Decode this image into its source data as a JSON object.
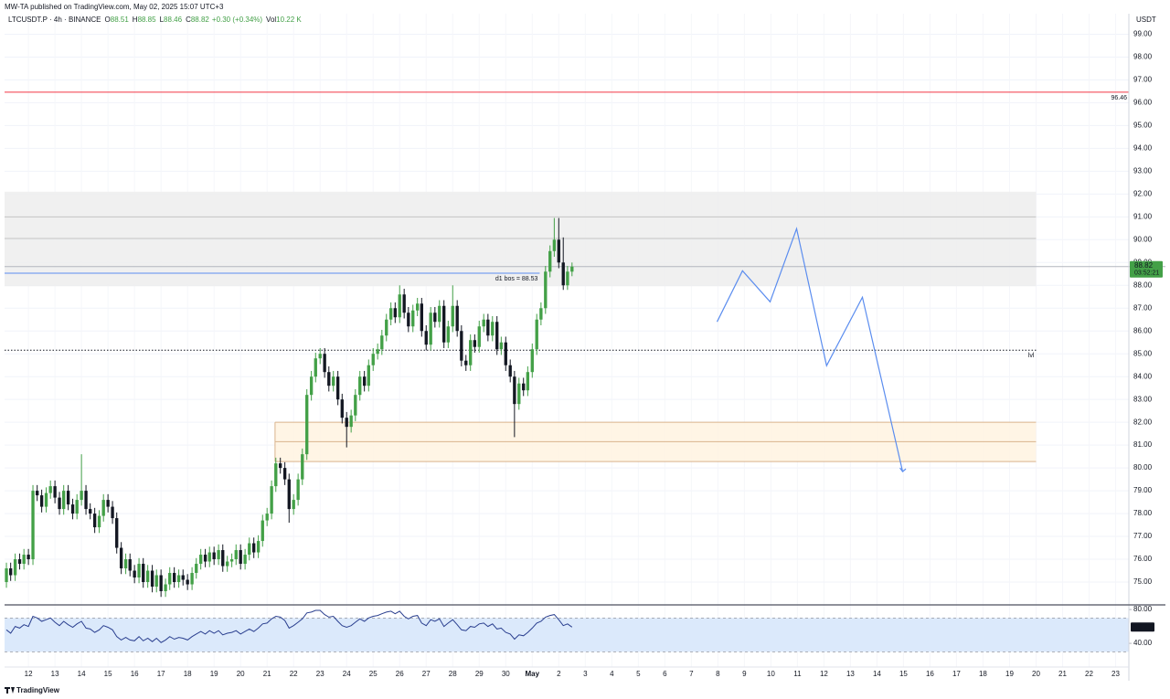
{
  "header": {
    "published": "MW-TA published on TradingView.com, May 02, 2025 15:07 UTC+3",
    "footer": "TradingView"
  },
  "chart_data": [
    {
      "type": "candlestick",
      "symbol": "LTCUSDT.P · 4h · BINANCE",
      "ohlc": [
        {
          "key": "O",
          "value": 88.51
        },
        {
          "key": "H",
          "value": 88.85
        },
        {
          "key": "L",
          "value": 88.46
        },
        {
          "key": "C",
          "value": 88.82
        }
      ],
      "change": "+0.30 (+0.34%)",
      "volume": {
        "key": "Vol",
        "value": "10.22 K"
      },
      "y_axis_title": "USDT",
      "x": [
        11.17,
        11.33,
        11.5,
        11.67,
        11.83,
        12,
        12.17,
        12.33,
        12.5,
        12.67,
        12.83,
        13,
        13.17,
        13.33,
        13.5,
        13.67,
        13.83,
        14,
        14.17,
        14.33,
        14.5,
        14.67,
        14.83,
        15,
        15.17,
        15.33,
        15.5,
        15.67,
        15.83,
        16,
        16.17,
        16.33,
        16.5,
        16.67,
        16.83,
        17,
        17.17,
        17.33,
        17.5,
        17.67,
        17.83,
        18,
        18.17,
        18.33,
        18.5,
        18.67,
        18.83,
        19,
        19.17,
        19.33,
        19.5,
        19.67,
        19.83,
        20,
        20.17,
        20.33,
        20.5,
        20.67,
        20.83,
        21,
        21.17,
        21.33,
        21.5,
        21.67,
        21.83,
        22,
        22.17,
        22.33,
        22.5,
        22.67,
        22.83,
        23,
        23.17,
        23.33,
        23.5,
        23.67,
        23.83,
        24,
        24.17,
        24.33,
        24.5,
        24.67,
        24.83,
        25,
        25.17,
        25.33,
        25.5,
        25.67,
        25.83,
        26,
        26.17,
        26.33,
        26.5,
        26.67,
        26.83,
        27,
        27.17,
        27.33,
        27.5,
        27.67,
        27.83,
        28,
        28.17,
        28.33,
        28.5,
        28.67,
        28.83,
        29,
        29.17,
        29.33,
        29.5,
        29.67,
        29.83,
        30,
        30.17,
        30.33,
        30.5,
        30.67,
        30.83,
        31,
        31.17,
        31.33,
        31.5,
        31.67,
        31.83,
        32,
        32.17,
        32.33,
        32.5
      ],
      "open": [
        75.0,
        75.6,
        75.3,
        76.0,
        75.8,
        76.2,
        76.0,
        79.0,
        78.8,
        78.3,
        78.9,
        79.2,
        78.7,
        78.2,
        79.0,
        78.4,
        78.0,
        78.6,
        79.0,
        78.2,
        78.0,
        77.4,
        77.9,
        78.6,
        78.3,
        77.8,
        76.5,
        75.6,
        76.0,
        75.5,
        75.2,
        75.8,
        75.0,
        75.5,
        74.8,
        75.3,
        74.6,
        74.9,
        75.4,
        75.0,
        75.3,
        75.1,
        74.9,
        75.4,
        75.8,
        76.2,
        75.9,
        76.3,
        76.0,
        76.4,
        75.7,
        75.9,
        76.0,
        76.4,
        75.8,
        76.2,
        76.7,
        76.3,
        76.8,
        77.7,
        78.0,
        79.2,
        80.2,
        80.0,
        79.5,
        78.2,
        78.6,
        79.5,
        80.6,
        83.2,
        84.0,
        84.8,
        85.0,
        84.2,
        83.6,
        84.0,
        83.0,
        82.2,
        81.8,
        82.3,
        83.2,
        84.0,
        83.6,
        84.5,
        85.0,
        85.2,
        85.8,
        86.5,
        87.0,
        86.6,
        87.6,
        86.8,
        86.2,
        86.9,
        87.2,
        86.0,
        85.4,
        86.8,
        86.4,
        87.1,
        85.5,
        86.2,
        87.1,
        86.0,
        84.7,
        84.5,
        85.6,
        85.3,
        86.2,
        86.5,
        85.8,
        86.4,
        85.2,
        85.5,
        84.5,
        84.0,
        82.8,
        83.7,
        83.4,
        84.2,
        85.2,
        86.5,
        87.0,
        88.6,
        89.5,
        90.0,
        89.0,
        88.0,
        88.6
      ],
      "high": [
        75.85,
        75.85,
        76.25,
        76.25,
        76.45,
        76.45,
        79.25,
        79.25,
        79.05,
        79.15,
        79.45,
        79.45,
        78.95,
        79.25,
        79.25,
        78.65,
        78.85,
        80.6,
        79.25,
        78.45,
        78.25,
        78.15,
        78.85,
        78.85,
        78.55,
        78.05,
        76.75,
        76.25,
        76.25,
        75.75,
        76.05,
        76.05,
        75.75,
        75.75,
        75.55,
        75.55,
        75.15,
        75.65,
        75.65,
        75.55,
        75.55,
        75.35,
        75.65,
        76.05,
        76.45,
        76.45,
        76.55,
        76.55,
        76.65,
        76.65,
        76.15,
        76.25,
        76.65,
        76.65,
        76.45,
        76.95,
        76.95,
        77.05,
        77.95,
        78.25,
        79.45,
        80.45,
        80.45,
        80.25,
        79.75,
        78.85,
        79.75,
        80.85,
        83.45,
        84.25,
        85.05,
        85.25,
        85.25,
        84.45,
        84.25,
        84.25,
        83.25,
        82.45,
        82.55,
        83.45,
        84.25,
        84.25,
        84.75,
        85.25,
        85.45,
        86.05,
        86.75,
        87.25,
        87.25,
        88.0,
        87.85,
        87.05,
        87.15,
        87.45,
        87.45,
        86.25,
        87.05,
        87.05,
        87.35,
        87.35,
        86.45,
        88.0,
        87.35,
        86.25,
        84.95,
        85.85,
        85.85,
        86.45,
        86.75,
        86.75,
        86.65,
        86.65,
        85.75,
        85.75,
        84.75,
        84.25,
        83.95,
        83.95,
        84.45,
        85.45,
        86.75,
        87.25,
        88.85,
        89.75,
        90.95,
        90.95,
        90.1,
        88.85,
        89.0
      ],
      "low": [
        74.75,
        75.05,
        75.05,
        75.55,
        75.55,
        75.75,
        75.75,
        78.55,
        78.05,
        78.05,
        78.65,
        78.45,
        77.95,
        77.95,
        78.15,
        77.75,
        77.75,
        78.35,
        77.95,
        77.75,
        77.15,
        77.15,
        77.65,
        78.05,
        77.55,
        76.25,
        75.35,
        75.35,
        75.25,
        74.95,
        74.95,
        74.75,
        74.75,
        74.55,
        74.55,
        74.35,
        74.35,
        74.65,
        74.75,
        74.75,
        74.85,
        74.65,
        74.65,
        75.15,
        75.55,
        75.65,
        75.65,
        75.75,
        75.75,
        75.45,
        75.45,
        75.65,
        75.75,
        75.55,
        75.55,
        75.95,
        76.05,
        76.05,
        76.55,
        77.45,
        77.75,
        78.95,
        79.75,
        79.25,
        77.6,
        77.95,
        78.35,
        79.25,
        80.35,
        82.95,
        83.75,
        84.55,
        83.95,
        83.35,
        83.35,
        82.75,
        81.95,
        80.9,
        81.55,
        82.05,
        82.95,
        83.35,
        83.35,
        84.25,
        84.75,
        84.95,
        85.55,
        86.25,
        86.35,
        86.35,
        86.55,
        85.95,
        85.95,
        86.65,
        85.75,
        85.15,
        85.15,
        86.15,
        86.15,
        85.25,
        85.25,
        85.95,
        85.75,
        84.45,
        84.25,
        84.25,
        85.05,
        85.05,
        85.95,
        85.55,
        85.55,
        84.95,
        84.95,
        84.25,
        83.75,
        81.35,
        82.55,
        83.15,
        83.15,
        83.95,
        84.95,
        86.25,
        86.75,
        88.35,
        89.25,
        88.75,
        87.8,
        87.8,
        88.4
      ],
      "close": [
        75.6,
        75.3,
        76.0,
        75.8,
        76.2,
        76.0,
        79.0,
        78.8,
        78.3,
        78.9,
        79.2,
        78.7,
        78.2,
        79.0,
        78.4,
        78.0,
        78.6,
        79.0,
        78.2,
        78.0,
        77.4,
        77.9,
        78.6,
        78.3,
        77.8,
        76.5,
        75.6,
        76.0,
        75.5,
        75.2,
        75.8,
        75.0,
        75.5,
        74.8,
        75.3,
        74.6,
        74.9,
        75.4,
        75.0,
        75.3,
        75.1,
        74.9,
        75.4,
        75.8,
        76.2,
        75.9,
        76.3,
        76.0,
        76.4,
        75.7,
        75.9,
        76.0,
        76.4,
        75.8,
        76.2,
        76.7,
        76.3,
        76.8,
        77.7,
        78.0,
        79.2,
        80.2,
        80.0,
        79.5,
        78.2,
        78.6,
        79.5,
        80.6,
        83.2,
        84.0,
        84.8,
        85.0,
        84.2,
        83.6,
        84.0,
        83.0,
        82.2,
        81.8,
        82.3,
        83.2,
        84.0,
        83.6,
        84.5,
        85.0,
        85.2,
        85.8,
        86.5,
        87.0,
        86.6,
        87.6,
        86.8,
        86.2,
        86.9,
        87.2,
        86.0,
        85.4,
        86.8,
        86.4,
        87.1,
        85.5,
        86.2,
        87.1,
        86.0,
        84.7,
        84.5,
        85.6,
        85.3,
        86.2,
        86.5,
        85.8,
        86.4,
        85.2,
        85.5,
        84.5,
        84.0,
        82.8,
        83.7,
        83.4,
        84.2,
        85.2,
        86.5,
        87.0,
        88.6,
        89.5,
        90.0,
        89.0,
        88.0,
        88.6,
        88.82
      ],
      "up_color": "#43a047",
      "down_color": "#131722",
      "xlim": [
        11.1,
        53.5
      ],
      "ylim": [
        74,
        99.9
      ],
      "yticks": [
        {
          "value": 75,
          "label": "75.00"
        },
        {
          "value": 76,
          "label": "76.00"
        },
        {
          "value": 77,
          "label": "77.00"
        },
        {
          "value": 78,
          "label": "78.00"
        },
        {
          "value": 79,
          "label": "79.00"
        },
        {
          "value": 80,
          "label": "80.00"
        },
        {
          "value": 81,
          "label": "81.00"
        },
        {
          "value": 82,
          "label": "82.00"
        },
        {
          "value": 83,
          "label": "83.00"
        },
        {
          "value": 84,
          "label": "84.00"
        },
        {
          "value": 85,
          "label": "85.00"
        },
        {
          "value": 86,
          "label": "86.00"
        },
        {
          "value": 87,
          "label": "87.00"
        },
        {
          "value": 88,
          "label": "88.00"
        },
        {
          "value": 89,
          "label": "89.00"
        },
        {
          "value": 90,
          "label": "90.00"
        },
        {
          "value": 91,
          "label": "91.00"
        },
        {
          "value": 92,
          "label": "92.00"
        },
        {
          "value": 93,
          "label": "93.00"
        },
        {
          "value": 94,
          "label": "94.00"
        },
        {
          "value": 95,
          "label": "95.00"
        },
        {
          "value": 96,
          "label": "96.00"
        },
        {
          "value": 97,
          "label": "97.00"
        },
        {
          "value": 98,
          "label": "98.00"
        },
        {
          "value": 99,
          "label": "99.00"
        }
      ],
      "grid": true,
      "countdown": "03:52:21",
      "zones": [
        {
          "from": 87.96,
          "to": 92.1,
          "x": [
            11.1,
            50
          ],
          "color": "#ededed",
          "lines": [
            91.0,
            90.05
          ]
        },
        {
          "from": 80.28,
          "to": 82.0,
          "x": [
            21.3,
            50
          ],
          "color": "#fff3e0",
          "border": "#d9b38c",
          "lines": [
            81.15
          ]
        }
      ],
      "levels": [
        {
          "value": 96.46,
          "x": [
            11.1,
            53.5
          ],
          "color": "#f23645",
          "style": "solid",
          "label": 96.46
        },
        {
          "value": 88.53,
          "x": [
            11.1,
            31.28
          ],
          "color": "#5b8def",
          "style": "solid",
          "label": "d1 bos = 88.53"
        },
        {
          "value": 85.16,
          "x": [
            11.1,
            50
          ],
          "color": "#131722",
          "style": "dotted",
          "label": "lvl"
        }
      ],
      "projection": {
        "x": [
          37.97,
          38.93,
          39.97,
          40.97,
          42.1,
          43.45,
          44.97
        ],
        "y": [
          86.4,
          88.64,
          87.28,
          90.48,
          84.48,
          87.48,
          79.84
        ],
        "color": "#5b8def"
      }
    },
    {
      "type": "line",
      "x": [
        11.17,
        11.33,
        11.5,
        11.67,
        11.83,
        12,
        12.17,
        12.33,
        12.5,
        12.67,
        12.83,
        13,
        13.17,
        13.33,
        13.5,
        13.67,
        13.83,
        14,
        14.17,
        14.33,
        14.5,
        14.67,
        14.83,
        15,
        15.17,
        15.33,
        15.5,
        15.67,
        15.83,
        16,
        16.17,
        16.33,
        16.5,
        16.67,
        16.83,
        17,
        17.17,
        17.33,
        17.5,
        17.67,
        17.83,
        18,
        18.17,
        18.33,
        18.5,
        18.67,
        18.83,
        19,
        19.17,
        19.33,
        19.5,
        19.67,
        19.83,
        20,
        20.17,
        20.33,
        20.5,
        20.67,
        20.83,
        21,
        21.17,
        21.33,
        21.5,
        21.67,
        21.83,
        22,
        22.17,
        22.33,
        22.5,
        22.67,
        22.83,
        23,
        23.17,
        23.33,
        23.5,
        23.67,
        23.83,
        24,
        24.17,
        24.33,
        24.5,
        24.67,
        24.83,
        25,
        25.17,
        25.33,
        25.5,
        25.67,
        25.83,
        26,
        26.17,
        26.33,
        26.5,
        26.67,
        26.83,
        27,
        27.17,
        27.33,
        27.5,
        27.67,
        27.83,
        28,
        28.17,
        28.33,
        28.5,
        28.67,
        28.83,
        29,
        29.17,
        29.33,
        29.5,
        29.67,
        29.83,
        30,
        30.17,
        30.33,
        30.5,
        30.67,
        30.83,
        31,
        31.17,
        31.33,
        31.5,
        31.67,
        31.83,
        32,
        32.17,
        32.33,
        32.5
      ],
      "values": [
        56,
        52,
        60,
        58,
        62,
        60,
        72,
        70,
        66,
        68,
        70,
        65,
        61,
        66,
        62,
        59,
        63,
        66,
        58,
        57,
        53,
        56,
        61,
        59,
        56,
        48,
        44,
        47,
        44,
        43,
        48,
        43,
        46,
        42,
        46,
        41,
        44,
        48,
        45,
        47,
        46,
        44,
        48,
        51,
        54,
        51,
        55,
        52,
        55,
        50,
        52,
        53,
        55,
        51,
        54,
        57,
        54,
        58,
        63,
        64,
        69,
        72,
        71,
        67,
        58,
        61,
        65,
        69,
        76,
        77,
        79,
        79,
        74,
        71,
        72,
        66,
        61,
        59,
        61,
        65,
        69,
        66,
        70,
        72,
        73,
        75,
        77,
        78,
        75,
        78,
        72,
        69,
        72,
        73,
        64,
        61,
        68,
        66,
        69,
        60,
        64,
        68,
        62,
        56,
        55,
        60,
        59,
        63,
        64,
        60,
        63,
        57,
        58,
        53,
        51,
        45,
        50,
        49,
        53,
        58,
        64,
        66,
        71,
        73,
        74,
        68,
        61,
        63,
        59.25
      ],
      "color": "#2a3f8f",
      "band": [
        30,
        70
      ],
      "band_color": "#dbe9fb",
      "xlim": [
        11.1,
        53.5
      ],
      "ylim": [
        12,
        85.5
      ],
      "yticks": [
        {
          "value": 40,
          "label": "40.00"
        },
        {
          "value": 80,
          "label": "80.00"
        }
      ],
      "xticks": [
        12,
        13,
        14,
        15,
        16,
        17,
        18,
        19,
        20,
        21,
        22,
        23,
        24,
        25,
        26,
        27,
        28,
        29,
        30,
        {
          "value": 31,
          "label": "May"
        },
        {
          "value": 32,
          "label": "2"
        },
        {
          "value": 33,
          "label": "3"
        },
        {
          "value": 34,
          "label": "4"
        },
        {
          "value": 35,
          "label": "5"
        },
        {
          "value": 36,
          "label": "6"
        },
        {
          "value": 37,
          "label": "7"
        },
        {
          "value": 38,
          "label": "8"
        },
        {
          "value": 39,
          "label": "9"
        },
        {
          "value": 40,
          "label": "10"
        },
        {
          "value": 41,
          "label": "11"
        },
        {
          "value": 42,
          "label": "12"
        },
        {
          "value": 43,
          "label": "13"
        },
        {
          "value": 44,
          "label": "14"
        },
        {
          "value": 45,
          "label": "15"
        },
        {
          "value": 46,
          "label": "16"
        },
        {
          "value": 47,
          "label": "17"
        },
        {
          "value": 48,
          "label": "18"
        },
        {
          "value": 49,
          "label": "19"
        },
        {
          "value": 50,
          "label": "20"
        },
        {
          "value": 51,
          "label": "21"
        },
        {
          "value": 52,
          "label": "22"
        },
        {
          "value": 53,
          "label": "23"
        }
      ]
    }
  ]
}
